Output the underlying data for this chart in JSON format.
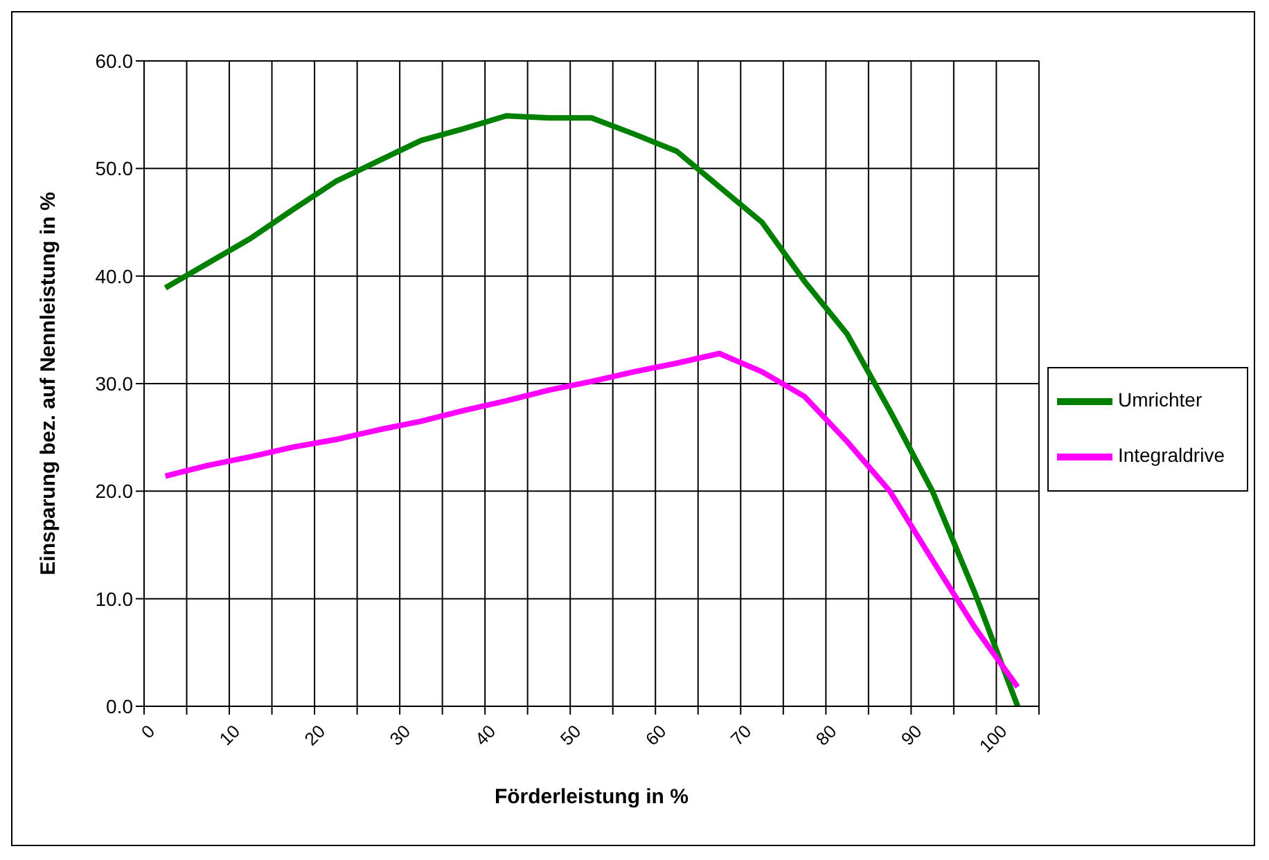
{
  "chart_data": {
    "type": "line",
    "xlabel": "Förderleistung in %",
    "ylabel": "Einsparung bez. auf Nennleistung in %",
    "x": [
      2.5,
      7.5,
      12.5,
      17.5,
      22.5,
      27.5,
      32.5,
      37.5,
      42.5,
      47.5,
      52.5,
      57.5,
      62.5,
      67.5,
      72.5,
      77.5,
      82.5,
      87.5,
      92.5,
      97.5,
      102.5
    ],
    "series": [
      {
        "name": "Umrichter",
        "color": "#008000",
        "values": [
          38.9,
          41.2,
          43.5,
          46.2,
          48.8,
          50.7,
          52.6,
          53.7,
          54.9,
          54.7,
          54.7,
          53.2,
          51.6,
          48.3,
          45.0,
          39.5,
          34.6,
          27.5,
          20.0,
          10.5,
          0.0
        ]
      },
      {
        "name": "Integraldrive",
        "color": "#ff00ff",
        "values": [
          21.4,
          22.4,
          23.2,
          24.1,
          24.8,
          25.7,
          26.5,
          27.5,
          28.4,
          29.4,
          30.2,
          31.1,
          31.9,
          32.8,
          31.1,
          28.8,
          24.6,
          20.0,
          13.6,
          7.3,
          1.8
        ]
      }
    ],
    "xlim": [
      0,
      105
    ],
    "xticks": [
      0,
      {
        "value": 5,
        "label": null
      },
      10,
      {
        "value": 15,
        "label": null
      },
      20,
      {
        "value": 25,
        "label": null
      },
      30,
      {
        "value": 35,
        "label": null
      },
      40,
      {
        "value": 45,
        "label": null
      },
      50,
      {
        "value": 55,
        "label": null
      },
      60,
      {
        "value": 65,
        "label": null
      },
      70,
      {
        "value": 75,
        "label": null
      },
      80,
      {
        "value": 85,
        "label": null
      },
      90,
      {
        "value": 95,
        "label": null
      },
      100,
      {
        "value": 105,
        "label": null
      }
    ],
    "ylim": [
      0,
      60
    ],
    "yticks": [
      {
        "value": 0,
        "label": "0.0"
      },
      {
        "value": 10,
        "label": "10.0"
      },
      {
        "value": 20,
        "label": "20.0"
      },
      {
        "value": 30,
        "label": "30.0"
      },
      {
        "value": 40,
        "label": "40.0"
      },
      {
        "value": 50,
        "label": "50.0"
      },
      {
        "value": 60,
        "label": "60.0"
      }
    ],
    "grid": true,
    "legend": "right",
    "marker": "none",
    "line_style": "solid"
  }
}
